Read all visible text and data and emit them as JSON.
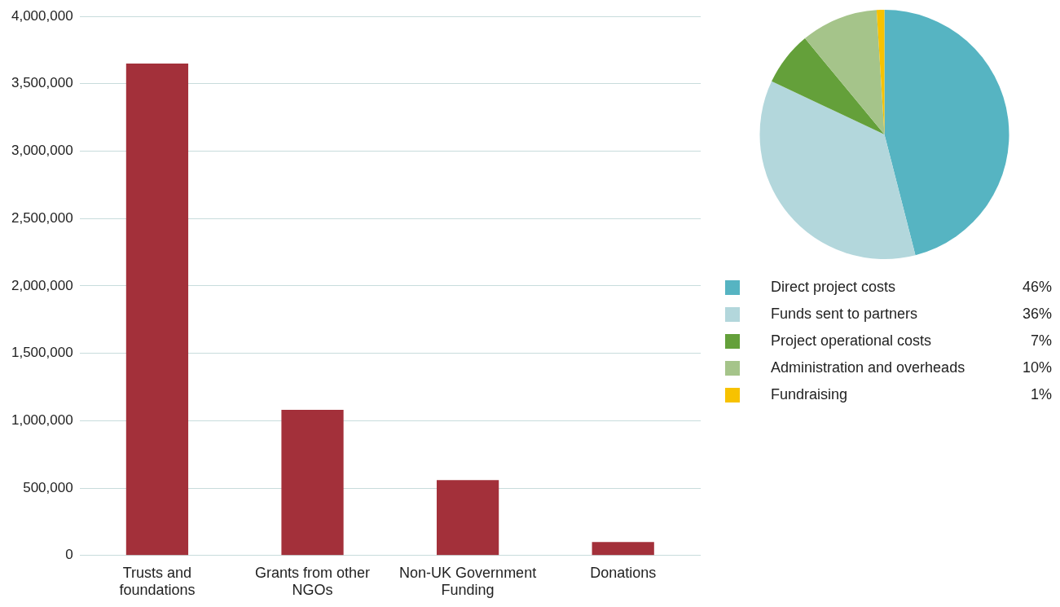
{
  "chart_data": [
    {
      "type": "bar",
      "categories": [
        "Trusts and foundations",
        "Grants from other NGOs",
        "Non-UK Government Funding",
        "Donations"
      ],
      "values": [
        3650000,
        1080000,
        560000,
        100000
      ],
      "color": "#a3303a",
      "ylim": [
        0,
        4000000
      ],
      "yticks": [
        {
          "value": 0,
          "label": "0"
        },
        {
          "value": 500000,
          "label": "500,000"
        },
        {
          "value": 1000000,
          "label": "1,000,000"
        },
        {
          "value": 1500000,
          "label": "1,500,000"
        },
        {
          "value": 2000000,
          "label": "2,000,000"
        },
        {
          "value": 2500000,
          "label": "2,500,000"
        },
        {
          "value": 3000000,
          "label": "3,000,000"
        },
        {
          "value": 3500000,
          "label": "3,500,000"
        },
        {
          "value": 4000000,
          "label": "4,000,000"
        }
      ],
      "grid": "y"
    },
    {
      "type": "pie",
      "categories": [
        "Direct project costs",
        "Funds sent to partners",
        "Project operational costs",
        "Administration and overheads",
        "Fundraising"
      ],
      "values": [
        46,
        36,
        7,
        10,
        1
      ],
      "colors": [
        "#56b4c2",
        "#b3d7dc",
        "#64a03a",
        "#a5c48a",
        "#f7c200"
      ],
      "value_labels": [
        "46%",
        "36%",
        "7%",
        "10%",
        "1%"
      ],
      "legend": "bottom"
    }
  ]
}
